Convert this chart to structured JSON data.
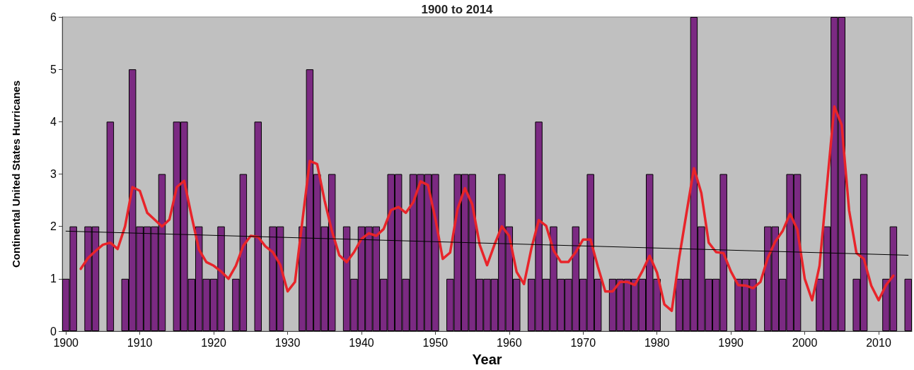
{
  "chart_data": {
    "type": "bar",
    "title": "1900 to 2014",
    "xlabel": "Year",
    "ylabel": "Continental United States Hurricanes",
    "xlim": [
      1899.5,
      2014.5
    ],
    "xticks": [
      1900,
      1910,
      1920,
      1930,
      1940,
      1950,
      1960,
      1970,
      1980,
      1990,
      2000,
      2010
    ],
    "ylim": [
      0,
      6
    ],
    "yticks": [
      0,
      1,
      2,
      3,
      4,
      5,
      6
    ],
    "grid": false,
    "marker": "none",
    "x": [
      1900,
      1901,
      1902,
      1903,
      1904,
      1905,
      1906,
      1907,
      1908,
      1909,
      1910,
      1911,
      1912,
      1913,
      1914,
      1915,
      1916,
      1917,
      1918,
      1919,
      1920,
      1921,
      1922,
      1923,
      1924,
      1925,
      1926,
      1927,
      1928,
      1929,
      1930,
      1931,
      1932,
      1933,
      1934,
      1935,
      1936,
      1937,
      1938,
      1939,
      1940,
      1941,
      1942,
      1943,
      1944,
      1945,
      1946,
      1947,
      1948,
      1949,
      1950,
      1951,
      1952,
      1953,
      1954,
      1955,
      1956,
      1957,
      1958,
      1959,
      1960,
      1961,
      1962,
      1963,
      1964,
      1965,
      1966,
      1967,
      1968,
      1969,
      1970,
      1971,
      1972,
      1973,
      1974,
      1975,
      1976,
      1977,
      1978,
      1979,
      1980,
      1981,
      1982,
      1983,
      1984,
      1985,
      1986,
      1987,
      1988,
      1989,
      1990,
      1991,
      1992,
      1993,
      1994,
      1995,
      1996,
      1997,
      1998,
      1999,
      2000,
      2001,
      2002,
      2003,
      2004,
      2005,
      2006,
      2007,
      2008,
      2009,
      2010,
      2011,
      2012,
      2013,
      2014
    ],
    "series": [
      {
        "color": "#7b2a82",
        "values": [
          1,
          2,
          0,
          2,
          2,
          0,
          4,
          0,
          1,
          5,
          2,
          2,
          2,
          3,
          0,
          4,
          4,
          1,
          2,
          1,
          1,
          2,
          0,
          1,
          3,
          0,
          4,
          0,
          2,
          2,
          0,
          0,
          2,
          5,
          3,
          2,
          3,
          0,
          2,
          1,
          2,
          2,
          2,
          1,
          3,
          3,
          1,
          3,
          3,
          3,
          3,
          0,
          1,
          3,
          3,
          3,
          1,
          1,
          1,
          3,
          2,
          1,
          0,
          1,
          4,
          1,
          2,
          1,
          1,
          2,
          1,
          3,
          1,
          0,
          1,
          1,
          1,
          1,
          1,
          3,
          1,
          0,
          0,
          1,
          1,
          6,
          2,
          1,
          1,
          3,
          0,
          1,
          1,
          1,
          0,
          2,
          2,
          1,
          3,
          3,
          0,
          0,
          1,
          2,
          6,
          6,
          0,
          1,
          3,
          0,
          0,
          1,
          2,
          0,
          1
        ]
      },
      {
        "type": "line",
        "color": "#e8242a",
        "line_style": "solid",
        "x": [
          1902,
          1903,
          1904,
          1905,
          1906,
          1907,
          1908,
          1909,
          1910,
          1911,
          1912,
          1913,
          1914,
          1915,
          1916,
          1917,
          1918,
          1919,
          1920,
          1921,
          1922,
          1923,
          1924,
          1925,
          1926,
          1927,
          1928,
          1929,
          1930,
          1931,
          1932,
          1933,
          1934,
          1935,
          1936,
          1937,
          1938,
          1939,
          1940,
          1941,
          1942,
          1943,
          1944,
          1945,
          1946,
          1947,
          1948,
          1949,
          1950,
          1951,
          1952,
          1953,
          1954,
          1955,
          1956,
          1957,
          1958,
          1959,
          1960,
          1961,
          1962,
          1963,
          1964,
          1965,
          1966,
          1967,
          1968,
          1969,
          1970,
          1971,
          1972,
          1973,
          1974,
          1975,
          1976,
          1977,
          1978,
          1979,
          1980,
          1981,
          1982,
          1983,
          1984,
          1985,
          1986,
          1987,
          1988,
          1989,
          1990,
          1991,
          1992,
          1993,
          1994,
          1995,
          1996,
          1997,
          1998,
          1999,
          2000,
          2001,
          2002,
          2003,
          2004,
          2005,
          2006,
          2007,
          2008,
          2009,
          2010,
          2011,
          2012
        ],
        "values": [
          1.19,
          1.4,
          1.53,
          1.65,
          1.69,
          1.57,
          2.0,
          2.75,
          2.68,
          2.26,
          2.13,
          2.0,
          2.13,
          2.75,
          2.87,
          2.2,
          1.56,
          1.32,
          1.25,
          1.14,
          1.0,
          1.25,
          1.63,
          1.82,
          1.8,
          1.62,
          1.51,
          1.27,
          0.76,
          0.94,
          2.1,
          3.25,
          3.19,
          2.5,
          1.91,
          1.45,
          1.32,
          1.51,
          1.76,
          1.87,
          1.82,
          1.95,
          2.31,
          2.37,
          2.26,
          2.46,
          2.86,
          2.79,
          2.15,
          1.38,
          1.5,
          2.33,
          2.73,
          2.42,
          1.65,
          1.26,
          1.65,
          2.0,
          1.82,
          1.13,
          0.9,
          1.58,
          2.12,
          2.01,
          1.54,
          1.32,
          1.32,
          1.51,
          1.75,
          1.75,
          1.23,
          0.76,
          0.76,
          0.94,
          0.94,
          0.88,
          1.14,
          1.44,
          1.12,
          0.51,
          0.39,
          1.4,
          2.26,
          3.11,
          2.64,
          1.69,
          1.51,
          1.49,
          1.14,
          0.88,
          0.87,
          0.82,
          0.94,
          1.4,
          1.71,
          1.91,
          2.24,
          1.94,
          1.0,
          0.59,
          1.25,
          2.77,
          4.29,
          3.94,
          2.31,
          1.49,
          1.38,
          0.87,
          0.59,
          0.88,
          1.06
        ]
      },
      {
        "type": "line",
        "color": "#000000",
        "line_style": "solid",
        "x": [
          1900,
          2014
        ],
        "values": [
          1.91,
          1.45
        ]
      }
    ]
  }
}
